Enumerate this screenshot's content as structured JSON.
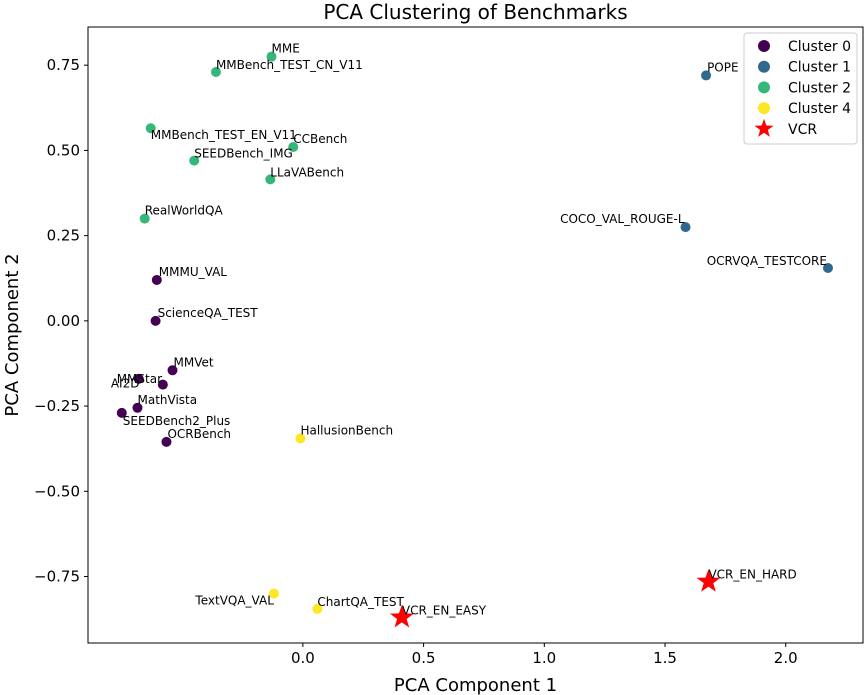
{
  "chart_data": {
    "type": "scatter",
    "title": "PCA Clustering of Benchmarks",
    "xlabel": "PCA Component 1",
    "ylabel": "PCA Component 2",
    "xlim": [
      -0.89,
      2.32
    ],
    "ylim": [
      -0.945,
      0.862
    ],
    "xticks": [
      0.0,
      0.5,
      1.0,
      1.5,
      2.0
    ],
    "xtick_labels": [
      "0.0",
      "0.5",
      "1.0",
      "1.5",
      "2.0"
    ],
    "yticks": [
      -0.75,
      -0.5,
      -0.25,
      0.0,
      0.25,
      0.5,
      0.75
    ],
    "ytick_labels": [
      "−0.75",
      "−0.50",
      "−0.25",
      "0.00",
      "0.25",
      "0.50",
      "0.75"
    ],
    "grid": false,
    "legend_position": "top-right",
    "series": [
      {
        "name": "Cluster 0",
        "color": "#440154",
        "marker": "circle",
        "points": [
          {
            "label": "MMMU_VAL",
            "x": -0.605,
            "y": 0.12
          },
          {
            "label": "ScienceQA_TEST",
            "x": -0.61,
            "y": 0.0
          },
          {
            "label": "MMVet",
            "x": -0.54,
            "y": -0.145
          },
          {
            "label": "MMStar",
            "x": -0.68,
            "y": -0.17
          },
          {
            "label": "AI2D",
            "x": -0.58,
            "y": -0.187
          },
          {
            "label": "MathVista",
            "x": -0.685,
            "y": -0.255
          },
          {
            "label": "SEEDBench2_Plus",
            "x": -0.75,
            "y": -0.27
          },
          {
            "label": "OCRBench",
            "x": -0.565,
            "y": -0.355
          }
        ]
      },
      {
        "name": "Cluster 1",
        "color": "#31688e",
        "marker": "circle",
        "points": [
          {
            "label": "POPE",
            "x": 1.67,
            "y": 0.72
          },
          {
            "label": "COCO_VAL_ROUGE-L",
            "x": 1.585,
            "y": 0.275
          },
          {
            "label": "OCRVQA_TESTCORE",
            "x": 2.175,
            "y": 0.155
          }
        ]
      },
      {
        "name": "Cluster 2",
        "color": "#35b779",
        "marker": "circle",
        "points": [
          {
            "label": "MME",
            "x": -0.13,
            "y": 0.775
          },
          {
            "label": "MMBench_TEST_CN_V11",
            "x": -0.36,
            "y": 0.73
          },
          {
            "label": "MMBench_TEST_EN_V11",
            "x": -0.63,
            "y": 0.565
          },
          {
            "label": "CCBench",
            "x": -0.04,
            "y": 0.51
          },
          {
            "label": "SEEDBench_IMG",
            "x": -0.45,
            "y": 0.47
          },
          {
            "label": "LLaVABench",
            "x": -0.135,
            "y": 0.415
          },
          {
            "label": "RealWorldQA",
            "x": -0.655,
            "y": 0.3
          }
        ]
      },
      {
        "name": "Cluster 4",
        "color": "#fde725",
        "marker": "circle",
        "points": [
          {
            "label": "HallusionBench",
            "x": -0.01,
            "y": -0.345
          },
          {
            "label": "TextVQA_VAL",
            "x": -0.12,
            "y": -0.8
          },
          {
            "label": "ChartQA_TEST",
            "x": 0.06,
            "y": -0.845
          }
        ]
      },
      {
        "name": "VCR",
        "color": "#ff0000",
        "marker": "star",
        "points": [
          {
            "label": "VCR_EN_EASY",
            "x": 0.41,
            "y": -0.87
          },
          {
            "label": "VCR_EN_HARD",
            "x": 1.68,
            "y": -0.765
          }
        ]
      }
    ]
  }
}
